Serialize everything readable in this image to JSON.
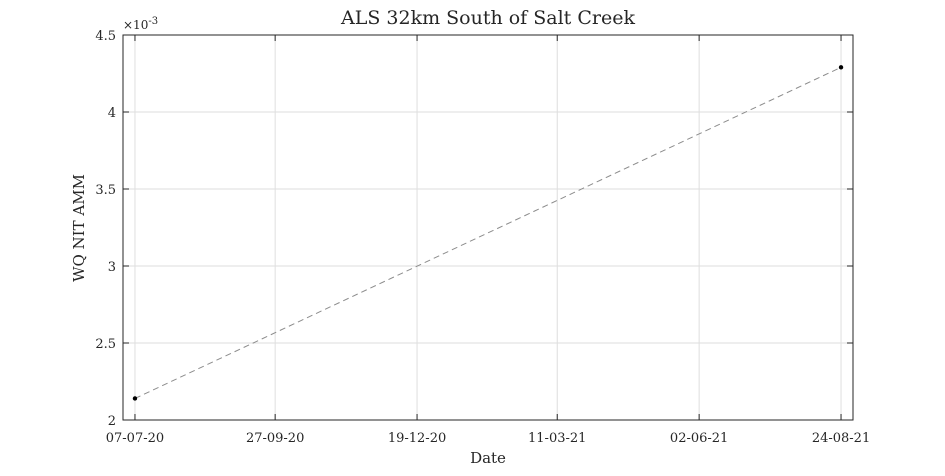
{
  "chart_data": {
    "type": "line",
    "title": "ALS 32km South of Salt Creek",
    "xlabel": "Date",
    "ylabel": "WQ NIT AMM",
    "y_exponent_base": "×10",
    "y_exponent_power": "-3",
    "x_ticks": [
      "07-07-20",
      "27-09-20",
      "19-12-20",
      "11-03-21",
      "02-06-21",
      "24-08-21"
    ],
    "y_ticks": [
      "2",
      "2.5",
      "3",
      "3.5",
      "4",
      "4.5"
    ],
    "y_tick_values": [
      0.002,
      0.0025,
      0.003,
      0.0035,
      0.004,
      0.0045
    ],
    "xlim": [
      "2020-06-30",
      "2021-08-31"
    ],
    "ylim": [
      0.002,
      0.0045
    ],
    "grid": true,
    "line_style": "dashed",
    "line_color": "#8c8c8c",
    "marker_color": "#000000",
    "series": [
      {
        "x": [
          "2020-07-07",
          "2021-08-24"
        ],
        "y": [
          0.00214,
          0.00429
        ]
      }
    ]
  }
}
